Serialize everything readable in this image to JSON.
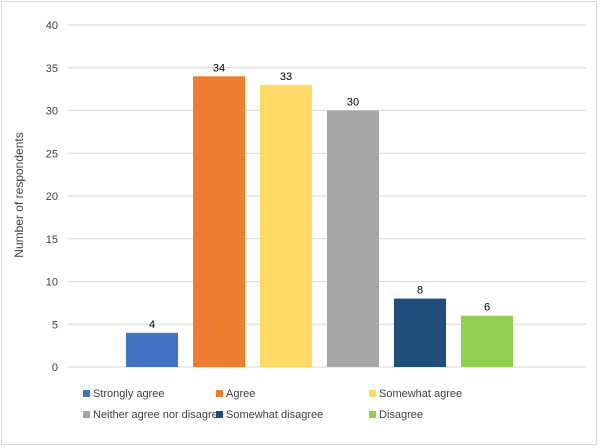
{
  "chart_data": {
    "type": "bar",
    "title": "",
    "xlabel": "",
    "ylabel": "Number of respondents",
    "ylim": [
      0,
      40
    ],
    "yticks": [
      0,
      5,
      10,
      15,
      20,
      25,
      30,
      35,
      40
    ],
    "grid": true,
    "legend_position": "bottom",
    "categories": [
      "Strongly agree",
      "Agree",
      "Somewhat agree",
      "Neither agree nor disagree",
      "Somewhat disagree",
      "Disagree"
    ],
    "values": [
      4,
      34,
      33,
      30,
      8,
      6
    ],
    "colors": [
      "#4472C4",
      "#ED7D31",
      "#FFD966",
      "#A5A5A5",
      "#1F4E79",
      "#92D050"
    ]
  }
}
